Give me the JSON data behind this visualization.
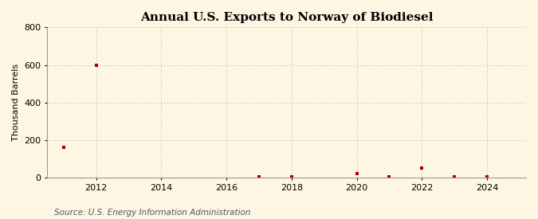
{
  "title": "Annual U.S. Exports to Norway of Biodiesel",
  "ylabel": "Thousand Barrels",
  "source_text": "Source: U.S. Energy Information Administration",
  "background_color": "#fdf6e3",
  "plot_bg_color": "#fdf6e3",
  "marker_color": "#aa0000",
  "grid_color": "#bbbbbb",
  "years": [
    2011,
    2012,
    2017,
    2018,
    2020,
    2021,
    2022,
    2023,
    2024
  ],
  "values": [
    160,
    597,
    3,
    4,
    20,
    4,
    50,
    4,
    4
  ],
  "ylim": [
    0,
    800
  ],
  "yticks": [
    0,
    200,
    400,
    600,
    800
  ],
  "xlim": [
    2010.5,
    2025.2
  ],
  "xticks": [
    2012,
    2014,
    2016,
    2018,
    2020,
    2022,
    2024
  ],
  "title_fontsize": 11,
  "label_fontsize": 8,
  "tick_fontsize": 8,
  "source_fontsize": 7.5
}
